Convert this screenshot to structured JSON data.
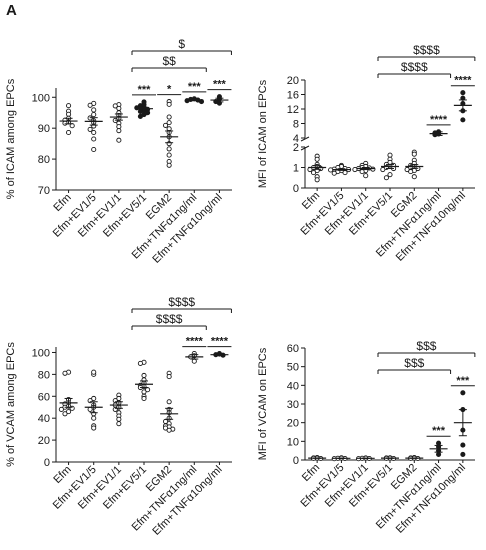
{
  "panel_label": "A",
  "colors": {
    "ink": "#1a1a1a",
    "open_marker": "#ffffff"
  },
  "chart_data": [
    {
      "type": "scatter",
      "ylabel": "% of ICAM among EPCs",
      "ylim": [
        70,
        103
      ],
      "yticks": [
        70,
        80,
        90,
        100
      ],
      "categories": [
        "Efm",
        "Efm+EV1/5",
        "Efm+EV1/1",
        "Efm+EV5/1",
        "EGM2",
        "Efm+TNFα1ng/ml",
        "Efm+TNFα10ng/ml"
      ],
      "points": [
        [
          97.3,
          95.5,
          94.5,
          93.2,
          92.6,
          92.0,
          91.6,
          90.8,
          88.6
        ],
        [
          98.0,
          97.4,
          95.9,
          94.4,
          93.3,
          92.4,
          91.8,
          90.7,
          89.6,
          88.6,
          86.5,
          83.1
        ],
        [
          97.6,
          97.2,
          96.4,
          95.0,
          94.1,
          93.2,
          92.5,
          91.6,
          90.5,
          89.2,
          86.1
        ],
        [
          98.5,
          97.7,
          97.3,
          96.9,
          96.5,
          96.1,
          95.8,
          95.4,
          95.0,
          94.4,
          93.8,
          96.6
        ],
        [
          98.6,
          97.7,
          93.6,
          91.8,
          90.9,
          89.8,
          88.6,
          87.2,
          85.0,
          83.3,
          81.3,
          79.2,
          78.0
        ],
        [
          99.5,
          99.3,
          99.1,
          98.9,
          98.6
        ],
        [
          100.2,
          99.4,
          98.6,
          98.1
        ]
      ],
      "means": [
        92.3,
        92.2,
        93.6,
        96.3,
        87.2,
        99.1,
        99.1
      ],
      "sems": [
        0.9,
        1.2,
        1.0,
        0.4,
        1.9,
        0.2,
        0.6
      ],
      "filled": [
        false,
        false,
        false,
        true,
        false,
        true,
        true
      ],
      "stars": [
        "",
        "",
        "",
        "***",
        "*",
        "***",
        "***"
      ],
      "brackets": [
        {
          "from": 3,
          "to": 6,
          "label": "$"
        },
        {
          "from": 3,
          "to": 5,
          "label": "$$"
        }
      ]
    },
    {
      "type": "scatter",
      "ylabel": "MFI of ICAM on EPCs",
      "axis_break": true,
      "lower_range": [
        0,
        2
      ],
      "lower_ticks": [
        0,
        1,
        2
      ],
      "upper_range": [
        4,
        20
      ],
      "upper_ticks": [
        4,
        8,
        12,
        16,
        20
      ],
      "categories": [
        "Efm",
        "Efm+EV1/5",
        "Efm+EV1/1",
        "Efm+EV5/1",
        "EGM2",
        "Efm+TNFα1ng/ml",
        "Efm+TNFα10ng/ml"
      ],
      "points": [
        [
          1.55,
          1.4,
          1.15,
          1.05,
          1.0,
          0.95,
          0.9,
          0.85,
          0.75,
          0.55,
          0.4
        ],
        [
          1.1,
          1.05,
          1.0,
          0.95,
          0.92,
          0.9,
          0.88,
          0.85,
          0.8,
          0.75,
          0.72
        ],
        [
          1.2,
          1.1,
          1.05,
          1.0,
          0.98,
          0.95,
          0.92,
          0.9,
          0.85,
          0.8,
          0.6
        ],
        [
          1.6,
          1.4,
          1.25,
          1.15,
          1.1,
          1.05,
          1.0,
          0.95,
          0.9,
          0.65,
          0.5
        ],
        [
          1.75,
          1.65,
          1.35,
          1.2,
          1.1,
          1.05,
          1.0,
          0.95,
          0.9,
          0.85,
          0.8,
          0.55
        ],
        [
          5.7,
          5.4,
          5.1,
          4.9
        ],
        [
          16.5,
          15.0,
          13.5,
          11.5,
          9.0
        ]
      ],
      "means": [
        1.0,
        0.9,
        0.95,
        1.05,
        1.05,
        5.2,
        13.0
      ],
      "sems": [
        0.09,
        0.04,
        0.05,
        0.1,
        0.09,
        0.5,
        1.5
      ],
      "filled": [
        false,
        false,
        false,
        false,
        false,
        true,
        true
      ],
      "stars": [
        "",
        "",
        "",
        "",
        "",
        "****",
        "****"
      ],
      "brackets": [
        {
          "from": 3,
          "to": 6,
          "label": "$$$$"
        },
        {
          "from": 3,
          "to": 5,
          "label": "$$$$"
        }
      ]
    },
    {
      "type": "scatter",
      "ylabel": "% of VCAM among EPCs",
      "ylim": [
        0,
        105
      ],
      "yticks": [
        0,
        20,
        40,
        60,
        80,
        100
      ],
      "categories": [
        "Efm",
        "Efm+EV1/5",
        "Efm+EV1/1",
        "Efm+EV5/1",
        "EGM2",
        "Efm+TNFα1ng/ml",
        "Efm+TNFα10ng/ml"
      ],
      "points": [
        [
          82,
          81,
          57,
          54,
          53,
          51,
          50,
          49,
          48,
          46,
          44
        ],
        [
          80,
          82,
          58,
          56,
          52,
          50,
          48,
          44,
          40,
          33,
          31
        ],
        [
          61,
          58,
          56,
          54,
          52,
          50,
          48,
          45,
          42,
          39,
          35
        ],
        [
          91,
          90,
          79,
          75,
          72,
          70,
          69,
          68,
          66,
          64,
          60,
          58
        ],
        [
          81,
          78,
          55,
          48,
          45,
          40,
          37,
          35,
          33,
          32,
          31,
          30,
          29
        ],
        [
          99,
          97,
          96,
          92
        ],
        [
          99,
          98.5,
          98,
          97.5
        ]
      ],
      "means": [
        54,
        50,
        52,
        71,
        44,
        96,
        98
      ],
      "sems": [
        4,
        5,
        3,
        3,
        5,
        2,
        0.5
      ],
      "filled": [
        false,
        false,
        false,
        false,
        false,
        false,
        true
      ],
      "stars": [
        "",
        "",
        "",
        "",
        "",
        "****",
        "****"
      ],
      "brackets": [
        {
          "from": 3,
          "to": 6,
          "label": "$$$$"
        },
        {
          "from": 3,
          "to": 5,
          "label": "$$$$"
        }
      ]
    },
    {
      "type": "scatter",
      "ylabel": "MFI of VCAM on EPCs",
      "ylim": [
        0,
        60
      ],
      "yticks": [
        0,
        10,
        20,
        30,
        40,
        50,
        60
      ],
      "categories": [
        "Efm",
        "Efm+EV1/5",
        "Efm+EV1/1",
        "Efm+EV5/1",
        "EGM2",
        "Efm+TNFα1ng/ml",
        "Efm+TNFα10ng/ml"
      ],
      "points": [
        [
          1.3,
          1.1,
          1.0,
          0.9,
          0.8
        ],
        [
          1.2,
          1.0,
          0.9,
          0.8,
          0.7
        ],
        [
          1.1,
          1.0,
          0.9,
          0.8,
          0.7
        ],
        [
          1.2,
          1.1,
          1.0,
          0.9,
          0.8
        ],
        [
          1.3,
          1.1,
          1.0,
          0.9,
          0.8
        ],
        [
          9,
          7,
          5,
          3
        ],
        [
          36,
          27,
          16,
          8,
          3
        ]
      ],
      "means": [
        1.0,
        0.9,
        0.9,
        1.0,
        1.0,
        6,
        20
      ],
      "sems": [
        0.1,
        0.1,
        0.1,
        0.1,
        0.1,
        1.8,
        7
      ],
      "filled": [
        false,
        false,
        false,
        false,
        false,
        true,
        true
      ],
      "stars": [
        "",
        "",
        "",
        "",
        "",
        "***",
        "***"
      ],
      "brackets": [
        {
          "from": 3,
          "to": 6,
          "label": "$$$"
        },
        {
          "from": 3,
          "to": 5,
          "label": "$$$"
        }
      ]
    }
  ]
}
